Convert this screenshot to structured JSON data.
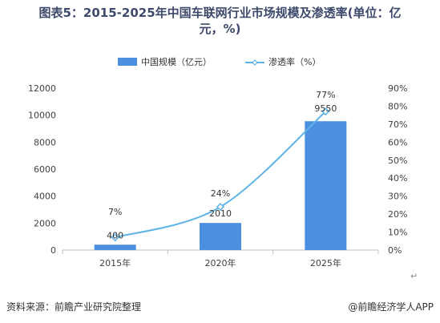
{
  "title": "图表5：2015-2025年中国车联网行业市场规模及渗透率(单位：亿元，%)",
  "title_line1": "图表5：2015-2025年中国车联网行业市场规模及渗透率(单位：亿",
  "title_line2": "元，%)",
  "footer": {
    "source": "资料来源：前瞻产业研究院整理",
    "brand": "@前瞻经济学人APP"
  },
  "chart_data": {
    "type": "bar",
    "categories": [
      "2015年",
      "2020年",
      "2025年"
    ],
    "series": [
      {
        "name": "中国规模（亿元）",
        "type": "bar",
        "axis": "left",
        "values": [
          400,
          2010,
          9550
        ],
        "color": "#4a8fe0"
      },
      {
        "name": "渗透率（%）",
        "type": "line",
        "axis": "right",
        "values": [
          7,
          24,
          77
        ],
        "color": "#5fb4e6"
      }
    ],
    "bar_labels": [
      "400",
      "2010",
      "9550"
    ],
    "line_labels": [
      "7%",
      "24%",
      "77%"
    ],
    "y_left": {
      "min": 0,
      "max": 12000,
      "step": 2000,
      "ticks": [
        "0",
        "2000",
        "4000",
        "6000",
        "8000",
        "10000",
        "12000"
      ]
    },
    "y_right": {
      "min": 0,
      "max": 90,
      "step": 10,
      "ticks": [
        "0%",
        "10%",
        "20%",
        "30%",
        "40%",
        "50%",
        "60%",
        "70%",
        "80%",
        "90%"
      ]
    },
    "legend_position": "top-center",
    "grid": false
  }
}
